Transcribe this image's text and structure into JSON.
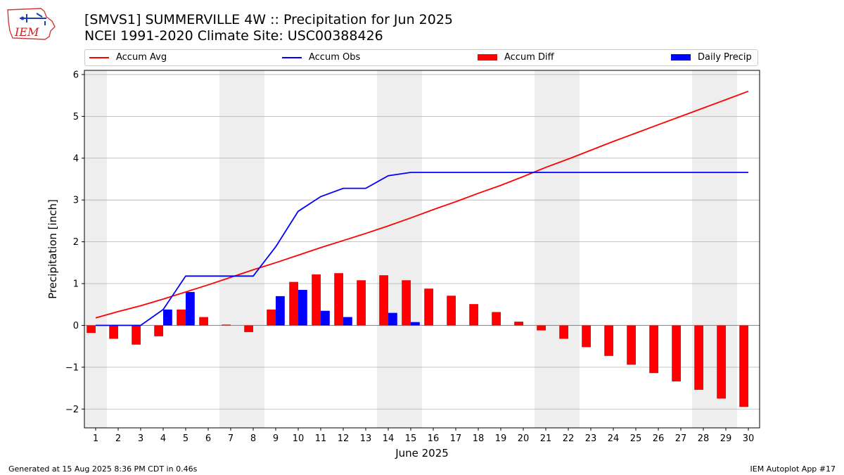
{
  "header": {
    "title": "[SMVS1] SUMMERVILLE 4W :: Precipitation for Jun 2025",
    "subtitle": "NCEI 1991-2020 Climate Site: USC00388426"
  },
  "logo": {
    "text": "IEM",
    "icon": "iowa-state-outline-logo"
  },
  "footer": {
    "left": "Generated at 15 Aug 2025 8:36 PM CDT in 0.46s",
    "right": "IEM Autoplot App #17"
  },
  "colors": {
    "accum_avg": "#ff0000",
    "accum_obs": "#0000ff",
    "accum_diff": "#ff0000",
    "daily_precip": "#0000ff",
    "weekend_band": "#eeeeee",
    "grid": "#b0b0b0"
  },
  "chart_data": {
    "type": "bar",
    "xlabel": "June 2025",
    "ylabel": "Precipitation [inch]",
    "xlim": [
      0.5,
      30.5
    ],
    "ylim": [
      -2.45,
      6.1
    ],
    "yticks": [
      -2,
      -1,
      0,
      1,
      2,
      3,
      4,
      5,
      6
    ],
    "ytick_labels": [
      "−2",
      "−1",
      "0",
      "1",
      "2",
      "3",
      "4",
      "5",
      "6"
    ],
    "x": [
      1,
      2,
      3,
      4,
      5,
      6,
      7,
      8,
      9,
      10,
      11,
      12,
      13,
      14,
      15,
      16,
      17,
      18,
      19,
      20,
      21,
      22,
      23,
      24,
      25,
      26,
      27,
      28,
      29,
      30
    ],
    "grid": "horizontal",
    "legend_position": "top",
    "weekend_bands": [
      [
        1,
        1
      ],
      [
        7,
        8
      ],
      [
        14,
        15
      ],
      [
        21,
        22
      ],
      [
        28,
        29
      ]
    ],
    "series": [
      {
        "name": "Accum Avg",
        "kind": "line",
        "values": [
          0.18,
          0.33,
          0.47,
          0.63,
          0.8,
          0.97,
          1.15,
          1.33,
          1.5,
          1.68,
          1.86,
          2.03,
          2.2,
          2.38,
          2.57,
          2.77,
          2.96,
          3.16,
          3.35,
          3.56,
          3.78,
          3.98,
          4.19,
          4.4,
          4.6,
          4.8,
          5.0,
          5.2,
          5.4,
          5.6
        ]
      },
      {
        "name": "Accum Obs",
        "kind": "line",
        "values": [
          0.0,
          0.0,
          0.0,
          0.38,
          1.18,
          1.18,
          1.18,
          1.18,
          1.88,
          2.73,
          3.08,
          3.28,
          3.28,
          3.58,
          3.66,
          3.66,
          3.66,
          3.66,
          3.66,
          3.66,
          3.66,
          3.66,
          3.66,
          3.66,
          3.66,
          3.66,
          3.66,
          3.66,
          3.66,
          3.66
        ]
      },
      {
        "name": "Accum Diff",
        "kind": "bar",
        "values": [
          -0.18,
          -0.32,
          -0.46,
          -0.26,
          0.38,
          0.2,
          0.02,
          -0.16,
          0.38,
          1.04,
          1.22,
          1.25,
          1.08,
          1.2,
          1.08,
          0.88,
          0.71,
          0.51,
          0.32,
          0.09,
          -0.12,
          -0.32,
          -0.52,
          -0.73,
          -0.94,
          -1.14,
          -1.34,
          -1.54,
          -1.75,
          -1.95
        ]
      },
      {
        "name": "Daily Precip",
        "kind": "bar",
        "values": [
          0,
          0,
          0,
          0.38,
          0.8,
          0,
          0,
          0,
          0.7,
          0.85,
          0.35,
          0.2,
          0,
          0.3,
          0.08,
          0,
          0,
          0,
          0,
          0,
          0,
          0,
          0,
          0,
          0,
          0,
          0,
          0,
          0,
          0
        ]
      }
    ]
  }
}
